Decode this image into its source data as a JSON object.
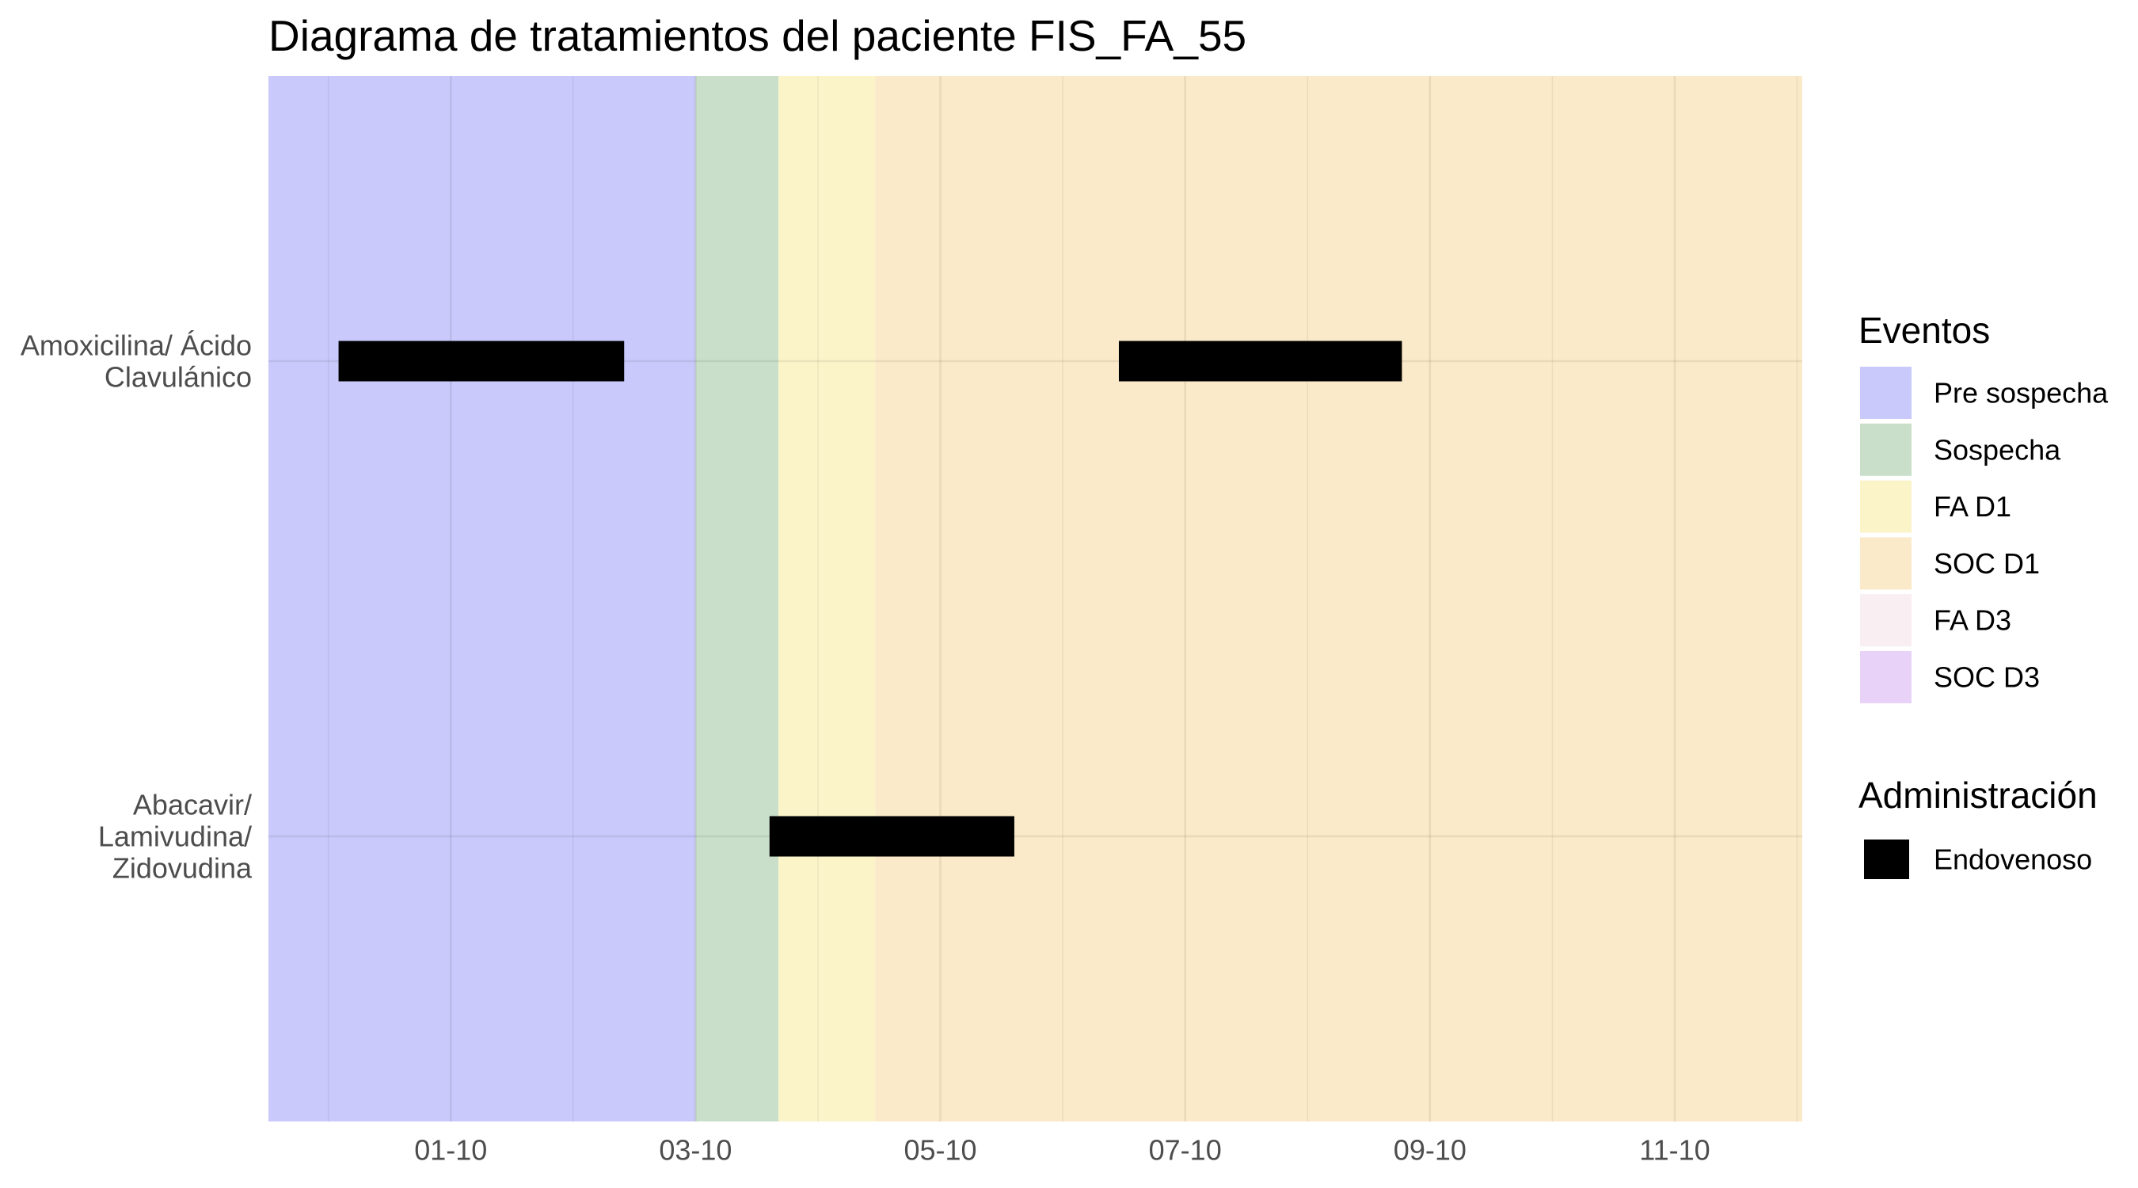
{
  "chart_data": {
    "type": "bar",
    "orientation": "horizontal",
    "title": "Diagrama de tratamientos del paciente FIS_FA_55",
    "xlim": [
      "29-09 12:15",
      "12-10 01:00"
    ],
    "x_ticks": [
      "01-10",
      "03-10",
      "05-10",
      "07-10",
      "09-10",
      "11-10"
    ],
    "grid": true,
    "categories": [
      {
        "label_lines": [
          "Amoxicilina/ Ácido",
          "Clavulánico"
        ],
        "bars": [
          {
            "start": "30-09 02:00",
            "end": "02-10 10:00",
            "color": "#000000"
          },
          {
            "start": "06-10 11:00",
            "end": "08-10 18:30",
            "color": "#000000"
          }
        ]
      },
      {
        "label_lines": [
          "Abacavir/",
          "Lamivudina/",
          "Zidovudina"
        ],
        "bars": [
          {
            "start": "03-10 14:30",
            "end": "05-10 14:30",
            "color": "#000000"
          }
        ]
      }
    ],
    "events": [
      {
        "name": "Pre sospecha",
        "start": "29-09 12:15",
        "end": "03-10 00:00",
        "color": "#c9c9fb"
      },
      {
        "name": "Sospecha",
        "start": "03-10 00:00",
        "end": "03-10 16:15",
        "color": "#c9dfc9"
      },
      {
        "name": "FA D1",
        "start": "03-10 16:15",
        "end": "04-10 11:15",
        "color": "#fcf4c9"
      },
      {
        "name": "SOC D1",
        "start": "04-10 11:15",
        "end": "12-10 01:00",
        "color": "#fbeac9"
      },
      {
        "name": "FA D3",
        "start": null,
        "end": null,
        "color": "#f9eef2"
      },
      {
        "name": "SOC D3",
        "start": null,
        "end": null,
        "color": "#e8d2f7"
      }
    ],
    "legend": {
      "position": "right",
      "events_title": "Eventos",
      "administration_title": "Administración",
      "administration": [
        {
          "label": "Endovenoso",
          "color": "#000000"
        }
      ]
    }
  }
}
